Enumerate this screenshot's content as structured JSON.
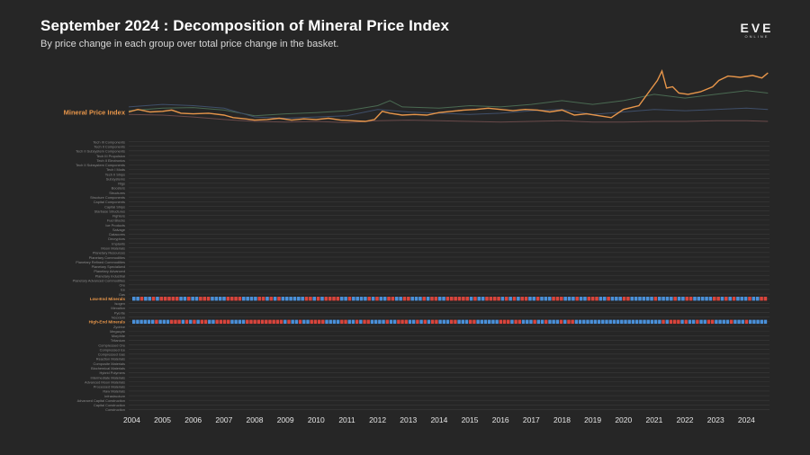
{
  "header": {
    "title": "September 2024 : Decomposition of Mineral Price Index",
    "subtitle": "By price change in each group over total price change in the basket."
  },
  "logo": {
    "main": "EVE",
    "sub": "ONLINE"
  },
  "colors": {
    "background": "#262626",
    "index_line": "#e8964a",
    "positive": "#4a90d9",
    "negative": "#d9443c",
    "neutral": "#7a6a6a",
    "row_label": "#8a8a8a",
    "highlight_label": "#e8964a",
    "grid": "#3a3a3a",
    "context_line_1": "#4a6a52",
    "context_line_2": "#3f4f6a",
    "context_line_3": "#6a4a4a"
  },
  "chart_data": {
    "type": "line+heatmap",
    "title": "September 2024 : Decomposition of Mineral Price Index",
    "x_ticks": [
      "2004",
      "2005",
      "2006",
      "2007",
      "2008",
      "2009",
      "2010",
      "2011",
      "2012",
      "2013",
      "2014",
      "2015",
      "2016",
      "2017",
      "2018",
      "2019",
      "2020",
      "2021",
      "2022",
      "2023",
      "2024"
    ],
    "xlim": [
      2003.9,
      2024.75
    ],
    "index_series": {
      "name": "Mineral Price Index",
      "points": [
        [
          2003.9,
          100
        ],
        [
          2004.2,
          104
        ],
        [
          2004.6,
          100
        ],
        [
          2005.0,
          101
        ],
        [
          2005.3,
          103
        ],
        [
          2005.6,
          98
        ],
        [
          2006.0,
          97
        ],
        [
          2006.5,
          98
        ],
        [
          2007.0,
          95
        ],
        [
          2007.3,
          91
        ],
        [
          2007.7,
          89
        ],
        [
          2008.0,
          87
        ],
        [
          2008.4,
          88
        ],
        [
          2008.8,
          90
        ],
        [
          2009.2,
          87
        ],
        [
          2009.6,
          89
        ],
        [
          2010.0,
          88
        ],
        [
          2010.4,
          90
        ],
        [
          2010.8,
          87
        ],
        [
          2011.2,
          86
        ],
        [
          2011.6,
          85
        ],
        [
          2011.9,
          88
        ],
        [
          2012.15,
          101
        ],
        [
          2012.4,
          98
        ],
        [
          2012.8,
          95
        ],
        [
          2013.2,
          96
        ],
        [
          2013.6,
          95
        ],
        [
          2014.0,
          99
        ],
        [
          2014.4,
          101
        ],
        [
          2014.8,
          103
        ],
        [
          2015.2,
          104
        ],
        [
          2015.6,
          106
        ],
        [
          2016.0,
          104
        ],
        [
          2016.4,
          102
        ],
        [
          2016.8,
          104
        ],
        [
          2017.2,
          103
        ],
        [
          2017.6,
          100
        ],
        [
          2018.0,
          103
        ],
        [
          2018.4,
          95
        ],
        [
          2018.8,
          97
        ],
        [
          2019.2,
          94
        ],
        [
          2019.6,
          91
        ],
        [
          2020.0,
          104
        ],
        [
          2020.5,
          110
        ],
        [
          2020.8,
          130
        ],
        [
          2021.1,
          150
        ],
        [
          2021.25,
          165
        ],
        [
          2021.4,
          138
        ],
        [
          2021.6,
          140
        ],
        [
          2021.8,
          130
        ],
        [
          2022.1,
          128
        ],
        [
          2022.5,
          132
        ],
        [
          2022.9,
          140
        ],
        [
          2023.1,
          150
        ],
        [
          2023.4,
          157
        ],
        [
          2023.8,
          155
        ],
        [
          2024.2,
          158
        ],
        [
          2024.5,
          154
        ],
        [
          2024.7,
          162
        ]
      ],
      "ylim": [
        75,
        175
      ]
    },
    "context_series": [
      {
        "points": [
          [
            2003.9,
            102
          ],
          [
            2005.0,
            106
          ],
          [
            2006.0,
            107
          ],
          [
            2007.0,
            103
          ],
          [
            2008.0,
            94
          ],
          [
            2009.0,
            97
          ],
          [
            2010.0,
            99
          ],
          [
            2011.0,
            102
          ],
          [
            2012.0,
            110
          ],
          [
            2012.4,
            118
          ],
          [
            2012.8,
            108
          ],
          [
            2014.0,
            106
          ],
          [
            2015.0,
            110
          ],
          [
            2016.0,
            108
          ],
          [
            2017.0,
            112
          ],
          [
            2018.0,
            118
          ],
          [
            2019.0,
            112
          ],
          [
            2020.0,
            118
          ],
          [
            2021.0,
            128
          ],
          [
            2022.0,
            122
          ],
          [
            2023.0,
            128
          ],
          [
            2024.0,
            134
          ],
          [
            2024.7,
            130
          ]
        ]
      },
      {
        "points": [
          [
            2003.9,
            108
          ],
          [
            2005.0,
            112
          ],
          [
            2006.0,
            110
          ],
          [
            2007.0,
            106
          ],
          [
            2008.0,
            92
          ],
          [
            2009.0,
            90
          ],
          [
            2010.0,
            92
          ],
          [
            2011.0,
            94
          ],
          [
            2012.0,
            104
          ],
          [
            2013.0,
            100
          ],
          [
            2014.0,
            98
          ],
          [
            2015.0,
            96
          ],
          [
            2016.0,
            98
          ],
          [
            2017.0,
            102
          ],
          [
            2018.0,
            104
          ],
          [
            2019.0,
            96
          ],
          [
            2020.0,
            100
          ],
          [
            2021.0,
            104
          ],
          [
            2022.0,
            102
          ],
          [
            2023.0,
            104
          ],
          [
            2024.0,
            106
          ],
          [
            2024.7,
            104
          ]
        ]
      },
      {
        "points": [
          [
            2003.9,
            96
          ],
          [
            2005.0,
            95
          ],
          [
            2006.0,
            92
          ],
          [
            2007.0,
            88
          ],
          [
            2008.0,
            85
          ],
          [
            2009.0,
            84
          ],
          [
            2010.0,
            85
          ],
          [
            2011.0,
            83
          ],
          [
            2012.0,
            86
          ],
          [
            2013.0,
            87
          ],
          [
            2014.0,
            86
          ],
          [
            2015.0,
            85
          ],
          [
            2016.0,
            84
          ],
          [
            2017.0,
            85
          ],
          [
            2018.0,
            86
          ],
          [
            2019.0,
            84
          ],
          [
            2020.0,
            84
          ],
          [
            2021.0,
            85
          ],
          [
            2022.0,
            85
          ],
          [
            2023.0,
            86
          ],
          [
            2024.0,
            86
          ],
          [
            2024.7,
            85
          ]
        ]
      }
    ],
    "rows": [
      "Tech III Components",
      "Tech II Components",
      "Tech II Subsystem Components",
      "Tech III Propulsion",
      "Tech II Electronics",
      "Tech II Subsystem Components",
      "Tech I Mods",
      "Tech II Ships",
      "Subsystems",
      "Rigs",
      "Boosters",
      "Structures",
      "Structure Components",
      "Capital Components",
      "Capital Ships",
      "Starbase Structures",
      "Fighters",
      "Fuel Blocks",
      "Ice Products",
      "Salvage",
      "Datacores",
      "Decryptors",
      "Implants",
      "Moon Materials",
      "Planetary Resources",
      "Planetary Commodities",
      "Planetary Refined Commodities",
      "Planetary Specialized",
      "Planetary Advanced",
      "Planetary Industrial",
      "Planetary Advanced Commodities",
      "Ore",
      "Ice",
      "Gas",
      "Low-End Minerals",
      "Isogen",
      "Mexallon",
      "Pyerite",
      "Nocxium",
      "High-End Minerals",
      "Zydrine",
      "Megacyte",
      "Morphite",
      "Tritanium",
      "Compressed Ore",
      "Compressed Ice",
      "Compressed Gas",
      "Reaction Materials",
      "Composite Materials",
      "Biochemical Materials",
      "Hybrid Polymers",
      "Intermediate Materials",
      "Advanced Moon Materials",
      "Processed Materials",
      "Raw Materials",
      "Infrastructure",
      "Advanced Capital Construction",
      "Capital Construction",
      "Construction"
    ],
    "highlighted_rows": [
      "Low-End Minerals",
      "High-End Minerals"
    ],
    "heat_rows": [
      {
        "row": "Low-End Minerals",
        "values": [
          1,
          1,
          -1,
          1,
          1,
          -1,
          1,
          -1,
          -1,
          -1,
          -1,
          -1,
          1,
          1,
          -1,
          1,
          1,
          -1,
          -1,
          -1,
          1,
          1,
          1,
          1,
          -1,
          -1,
          -1,
          -1,
          1,
          1,
          1,
          1,
          -1,
          -1,
          1,
          -1,
          1,
          -1,
          1,
          1,
          1,
          1,
          1,
          1,
          -1,
          -1,
          1,
          -1,
          1,
          -1,
          -1,
          -1,
          -1,
          1,
          1,
          -1,
          1,
          1,
          1,
          1,
          -1,
          1,
          -1,
          1,
          1,
          -1,
          -1,
          1,
          1,
          -1,
          -1,
          1,
          1,
          1,
          -1,
          1,
          -1,
          -1,
          1,
          1,
          -1,
          -1,
          -1,
          -1,
          -1,
          -1,
          1,
          -1,
          1,
          1,
          -1,
          -1,
          -1,
          -1,
          1,
          -1,
          1,
          -1,
          1,
          -1,
          -1,
          1,
          1,
          -1,
          1,
          1,
          1,
          -1,
          -1,
          -1,
          1,
          1,
          1,
          -1,
          1,
          1,
          -1,
          -1,
          -1,
          1,
          1,
          -1,
          1,
          1,
          1,
          -1,
          -1,
          1,
          1,
          1,
          1,
          1,
          1,
          -1,
          1,
          1,
          1,
          1,
          -1,
          1,
          1,
          -1,
          -1,
          1,
          1,
          1,
          1,
          1,
          -1,
          -1,
          1,
          -1,
          1,
          -1,
          1,
          1,
          1,
          -1,
          1,
          1,
          -1,
          -1
        ]
      },
      {
        "row": "High-End Minerals",
        "values": [
          1,
          1,
          1,
          1,
          1,
          1,
          -1,
          1,
          1,
          1,
          -1,
          -1,
          -1,
          1,
          -1,
          1,
          -1,
          1,
          -1,
          -1,
          1,
          1,
          -1,
          -1,
          -1,
          -1,
          1,
          1,
          1,
          1,
          -1,
          -1,
          -1,
          -1,
          -1,
          -1,
          -1,
          -1,
          -1,
          -1,
          1,
          -1,
          1,
          1,
          -1,
          1,
          1,
          -1,
          -1,
          -1,
          -1,
          1,
          1,
          1,
          1,
          -1,
          -1,
          1,
          1,
          -1,
          1,
          -1,
          -1,
          1,
          1,
          1,
          1,
          -1,
          1,
          1,
          -1,
          -1,
          -1,
          1,
          1,
          -1,
          1,
          -1,
          1,
          -1,
          -1,
          1,
          1,
          1,
          -1,
          -1,
          1,
          1,
          1,
          -1,
          -1,
          1,
          1,
          1,
          1,
          1,
          1,
          -1,
          -1,
          -1,
          1,
          -1,
          -1,
          1,
          1,
          1,
          -1,
          1,
          1,
          -1,
          1,
          1,
          1,
          -1,
          1,
          -1,
          -1,
          1,
          1,
          1,
          1,
          1,
          1,
          1,
          1,
          1,
          1,
          1,
          1,
          1,
          1,
          1,
          1,
          1,
          1,
          1,
          1,
          1,
          1,
          1,
          -1,
          1,
          -1,
          -1,
          -1,
          1,
          -1,
          1,
          1,
          -1,
          1,
          1,
          -1,
          -1,
          1,
          1,
          1,
          1,
          -1,
          1,
          1,
          1,
          -1,
          1,
          1,
          1,
          1,
          1
        ]
      }
    ]
  }
}
